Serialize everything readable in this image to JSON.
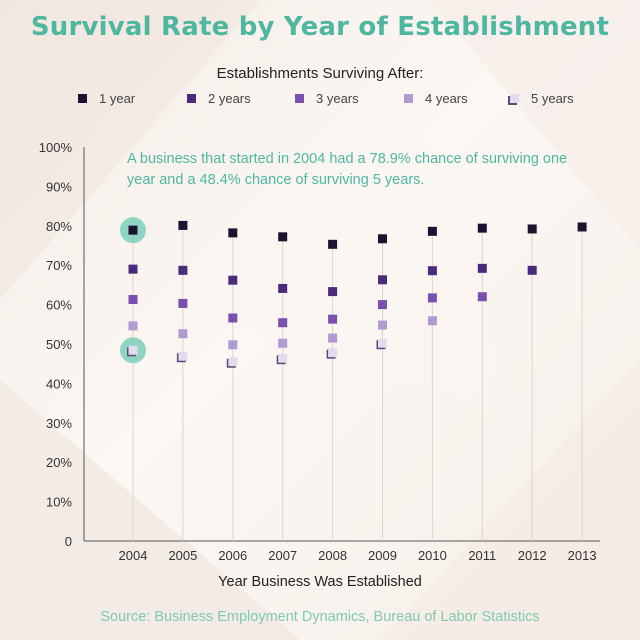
{
  "title": "Survival Rate by Year of Establishment",
  "legend_title": "Establishments Surviving After:",
  "annotation": "A business that started in 2004 had a 78.9% chance of surviving one year and a 48.4% chance of surviving 5 years.",
  "source": "Source: Business Employment Dynamics, Bureau of Labor Statistics",
  "colors": {
    "title": "#4fb7a0",
    "annotation": "#4fb7a0",
    "highlight": "#7ccfbb"
  },
  "chart_data": {
    "type": "scatter",
    "xlabel": "Year Business Was Established",
    "ylabel": "",
    "ylim": [
      0,
      100
    ],
    "yticks": [
      "0",
      "10%",
      "20%",
      "30%",
      "40%",
      "50%",
      "60%",
      "70%",
      "80%",
      "90%",
      "100%"
    ],
    "categories": [
      "2004",
      "2005",
      "2006",
      "2007",
      "2008",
      "2009",
      "2010",
      "2011",
      "2012",
      "2013"
    ],
    "series": [
      {
        "name": "1 year",
        "color": "#1b1330",
        "values": [
          78.9,
          80.1,
          78.2,
          77.2,
          75.3,
          76.7,
          78.6,
          79.4,
          79.2,
          79.7
        ]
      },
      {
        "name": "2 years",
        "color": "#4a2a7a",
        "values": [
          69.0,
          68.7,
          66.2,
          64.1,
          63.3,
          66.3,
          68.6,
          69.2,
          68.7,
          null
        ]
      },
      {
        "name": "3 years",
        "color": "#7a4fb0",
        "values": [
          61.3,
          60.3,
          56.6,
          55.4,
          56.3,
          60.0,
          61.7,
          62.0,
          null,
          null
        ]
      },
      {
        "name": "4 years",
        "color": "#b09ad2",
        "values": [
          54.6,
          52.6,
          49.8,
          50.2,
          51.5,
          54.8,
          55.9,
          null,
          null,
          null
        ]
      },
      {
        "name": "5 years",
        "color": "#e3dcee",
        "values": [
          48.4,
          46.9,
          45.5,
          46.4,
          47.8,
          50.2,
          null,
          null,
          null,
          null
        ]
      }
    ],
    "highlights": [
      {
        "category": "2004",
        "series": "1 year"
      },
      {
        "category": "2004",
        "series": "5 years"
      }
    ],
    "grid": false,
    "legend_position": "top"
  }
}
